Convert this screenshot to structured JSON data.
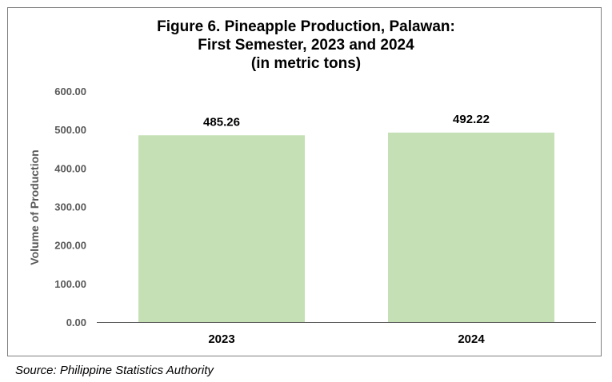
{
  "chart_data": {
    "type": "bar",
    "title_lines": [
      "Figure 6. Pineapple Production, Palawan:",
      "First Semester, 2023 and 2024",
      "(in metric tons)"
    ],
    "xlabel": "",
    "ylabel": "Volume of Production",
    "categories": [
      "2023",
      "2024"
    ],
    "values": [
      485.26,
      492.22
    ],
    "data_labels": [
      "485.26",
      "492.22"
    ],
    "ylim": [
      0,
      600
    ],
    "yticks": [
      "0.00",
      "100.00",
      "200.00",
      "300.00",
      "400.00",
      "500.00",
      "600.00"
    ],
    "grid": false,
    "legend": "none",
    "bar_color": "#c5e0b4",
    "axis_color": "#595959",
    "tick_label_color": "#595959"
  },
  "source": "Source: Philippine Statistics Authority"
}
